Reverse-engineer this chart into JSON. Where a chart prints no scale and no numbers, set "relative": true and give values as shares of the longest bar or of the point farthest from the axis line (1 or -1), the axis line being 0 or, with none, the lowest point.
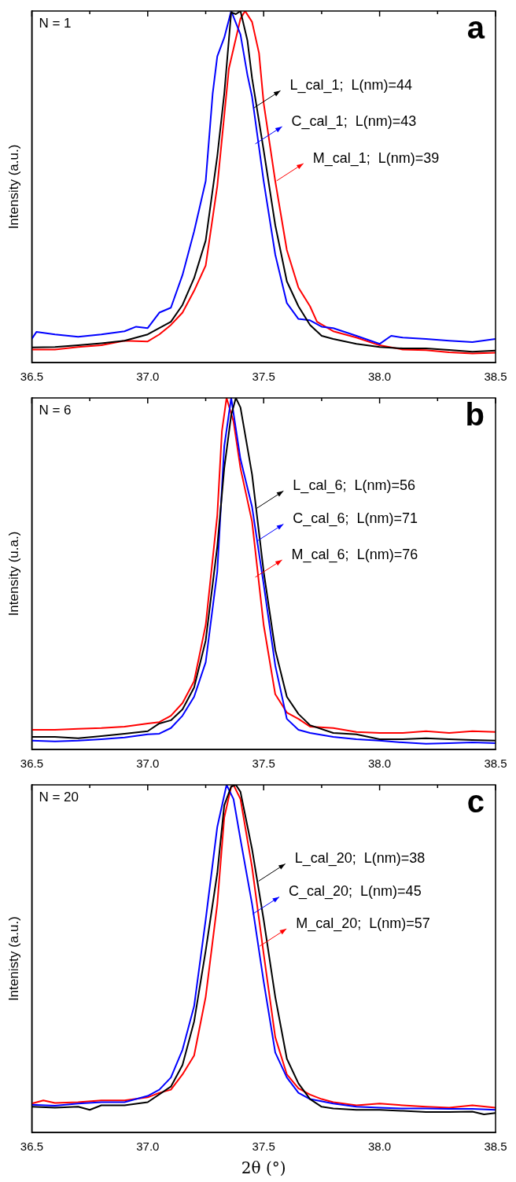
{
  "chart_data": [
    {
      "type": "line",
      "relative": true,
      "ylabel": "Intensity (a.u.)",
      "xlim": [
        36.5,
        38.5
      ],
      "xticks": [
        36.5,
        {
          "value": 36.75,
          "label": null
        },
        {
          "value": 37,
          "label": "37.0"
        },
        {
          "value": 37.25,
          "label": null
        },
        37.5,
        {
          "value": 37.75,
          "label": null
        },
        {
          "value": 38,
          "label": "38.0"
        },
        {
          "value": 38.25,
          "label": null
        },
        38.5
      ],
      "tick_labels": "x",
      "grid": false,
      "legend": false,
      "marker": "none",
      "line_style": "solid",
      "annotations": [
        "N = 1",
        "a",
        {
          "text": "L_cal_1;  L(nm)=44",
          "x": 37.457,
          "y": 0.724
        },
        {
          "text": "C_cal_1;  L(nm)=43",
          "x": 37.464,
          "y": 0.622
        },
        {
          "text": "M_cal_1;  L(nm)=39",
          "x": 37.556,
          "y": 0.517
        }
      ],
      "series": [
        {
          "color": "#000000",
          "x": [
            36.5,
            36.6,
            36.7,
            36.8,
            36.9,
            37.0,
            37.05,
            37.1,
            37.15,
            37.2,
            37.25,
            37.3,
            37.33,
            37.36,
            37.38,
            37.4,
            37.43,
            37.45,
            37.5,
            37.55,
            37.6,
            37.65,
            37.7,
            37.75,
            37.8,
            37.9,
            38.0,
            38.1,
            38.2,
            38.3,
            38.4,
            38.5
          ],
          "values": [
            0.043,
            0.044,
            0.049,
            0.055,
            0.062,
            0.08,
            0.098,
            0.116,
            0.164,
            0.24,
            0.347,
            0.587,
            0.764,
            0.996,
            0.991,
            1,
            0.916,
            0.809,
            0.604,
            0.391,
            0.231,
            0.16,
            0.107,
            0.076,
            0.067,
            0.053,
            0.044,
            0.04,
            0.04,
            0.036,
            0.031,
            0.034
          ]
        },
        {
          "color": "#0000ff",
          "x": [
            36.5,
            36.52,
            36.6,
            36.7,
            36.8,
            36.9,
            36.95,
            37.0,
            37.05,
            37.1,
            37.15,
            37.2,
            37.25,
            37.28,
            37.3,
            37.33,
            37.36,
            37.4,
            37.43,
            37.45,
            37.5,
            37.55,
            37.6,
            37.65,
            37.7,
            37.75,
            37.8,
            37.9,
            38.0,
            38.05,
            38.1,
            38.2,
            38.3,
            38.4,
            38.5
          ],
          "values": [
            0.067,
            0.087,
            0.08,
            0.073,
            0.08,
            0.089,
            0.102,
            0.098,
            0.142,
            0.156,
            0.249,
            0.373,
            0.516,
            0.764,
            0.871,
            0.924,
            1,
            0.933,
            0.818,
            0.756,
            0.516,
            0.307,
            0.169,
            0.124,
            0.12,
            0.102,
            0.098,
            0.076,
            0.053,
            0.076,
            0.071,
            0.067,
            0.062,
            0.058,
            0.067
          ]
        },
        {
          "color": "#ff0000",
          "x": [
            36.5,
            36.6,
            36.7,
            36.8,
            36.9,
            37.0,
            37.05,
            37.1,
            37.15,
            37.2,
            37.25,
            37.3,
            37.35,
            37.4,
            37.42,
            37.45,
            37.48,
            37.5,
            37.55,
            37.6,
            37.65,
            37.7,
            37.73,
            37.8,
            37.9,
            38.0,
            38.1,
            38.2,
            38.3,
            38.4,
            38.5
          ],
          "values": [
            0.037,
            0.037,
            0.044,
            0.049,
            0.062,
            0.06,
            0.08,
            0.107,
            0.142,
            0.204,
            0.276,
            0.502,
            0.836,
            0.978,
            1,
            0.969,
            0.88,
            0.738,
            0.516,
            0.32,
            0.213,
            0.16,
            0.116,
            0.089,
            0.071,
            0.049,
            0.037,
            0.035,
            0.029,
            0.026,
            0.028
          ]
        }
      ]
    },
    {
      "type": "line",
      "relative": true,
      "ylabel": "Intensity (u.a.)",
      "xlim": [
        36.5,
        38.5
      ],
      "xticks": [
        36.5,
        {
          "value": 36.75,
          "label": null
        },
        {
          "value": 37,
          "label": "37.0"
        },
        {
          "value": 37.25,
          "label": null
        },
        37.5,
        {
          "value": 37.75,
          "label": null
        },
        {
          "value": 38,
          "label": "38.0"
        },
        {
          "value": 38.25,
          "label": null
        },
        38.5
      ],
      "tick_labels": "x",
      "grid": false,
      "legend": false,
      "marker": "none",
      "line_style": "solid",
      "annotations": [
        "N = 6",
        "b",
        {
          "text": "L_cal_6;  L(nm)=56",
          "x": 37.47,
          "y": 0.686
        },
        {
          "text": "C_cal_6;  L(nm)=71",
          "x": 37.47,
          "y": 0.592
        },
        {
          "text": "M_cal_6;  L(nm)=76",
          "x": 37.464,
          "y": 0.49
        }
      ],
      "series": [
        {
          "color": "#000000",
          "x": [
            36.5,
            36.6,
            36.7,
            36.8,
            36.9,
            37.0,
            37.05,
            37.1,
            37.15,
            37.2,
            37.25,
            37.3,
            37.33,
            37.36,
            37.38,
            37.4,
            37.45,
            37.5,
            37.55,
            37.6,
            37.65,
            37.7,
            37.8,
            37.9,
            38.0,
            38.1,
            38.2,
            38.3,
            38.4,
            38.5
          ],
          "values": [
            0.036,
            0.036,
            0.032,
            0.038,
            0.045,
            0.052,
            0.074,
            0.083,
            0.114,
            0.176,
            0.31,
            0.577,
            0.8,
            0.951,
            1,
            0.973,
            0.782,
            0.506,
            0.283,
            0.15,
            0.101,
            0.069,
            0.047,
            0.043,
            0.029,
            0.029,
            0.032,
            0.029,
            0.027,
            0.025
          ]
        },
        {
          "color": "#0000ff",
          "x": [
            36.5,
            36.6,
            36.7,
            36.8,
            36.9,
            37.0,
            37.05,
            37.1,
            37.15,
            37.2,
            37.25,
            37.3,
            37.33,
            37.36,
            37.4,
            37.45,
            37.5,
            37.55,
            37.6,
            37.65,
            37.7,
            37.8,
            37.9,
            38.0,
            38.1,
            38.2,
            38.3,
            38.4,
            38.5
          ],
          "values": [
            0.025,
            0.023,
            0.025,
            0.029,
            0.034,
            0.043,
            0.045,
            0.061,
            0.096,
            0.15,
            0.248,
            0.506,
            0.862,
            1,
            0.826,
            0.69,
            0.47,
            0.239,
            0.087,
            0.056,
            0.047,
            0.036,
            0.029,
            0.025,
            0.02,
            0.016,
            0.018,
            0.02,
            0.018
          ]
        },
        {
          "color": "#ff0000",
          "x": [
            36.5,
            36.6,
            36.7,
            36.8,
            36.9,
            37.0,
            37.05,
            37.1,
            37.15,
            37.2,
            37.25,
            37.3,
            37.32,
            37.34,
            37.37,
            37.4,
            37.45,
            37.5,
            37.55,
            37.6,
            37.65,
            37.7,
            37.8,
            37.9,
            38.0,
            38.1,
            38.2,
            38.3,
            38.4,
            38.5
          ],
          "values": [
            0.056,
            0.056,
            0.059,
            0.061,
            0.065,
            0.074,
            0.078,
            0.096,
            0.132,
            0.194,
            0.354,
            0.666,
            0.906,
            1,
            0.933,
            0.8,
            0.648,
            0.354,
            0.157,
            0.105,
            0.087,
            0.065,
            0.061,
            0.05,
            0.047,
            0.047,
            0.052,
            0.047,
            0.052,
            0.05
          ]
        }
      ]
    },
    {
      "type": "line",
      "relative": true,
      "xlabel": "2θ (°)",
      "ylabel": "Intenisty (a.u.)",
      "xlim": [
        36.5,
        38.5
      ],
      "xticks": [
        36.5,
        {
          "value": 36.75,
          "label": null
        },
        {
          "value": 37,
          "label": "37.0"
        },
        {
          "value": 37.25,
          "label": null
        },
        37.5,
        {
          "value": 37.75,
          "label": null
        },
        {
          "value": 38,
          "label": "38.0"
        },
        {
          "value": 38.25,
          "label": null
        },
        38.5
      ],
      "tick_labels": "x",
      "grid": false,
      "legend": false,
      "marker": "none",
      "line_style": "solid",
      "annotations": [
        "N = 20",
        "c",
        {
          "text": "L_cal_20;  L(nm)=38",
          "x": 37.478,
          "y": 0.723
        },
        {
          "text": "C_cal_20;  L(nm)=45",
          "x": 37.452,
          "y": 0.628
        },
        {
          "text": "M_cal_20;  L(nm)=57",
          "x": 37.483,
          "y": 0.536
        }
      ],
      "series": [
        {
          "color": "#000000",
          "x": [
            36.5,
            36.6,
            36.7,
            36.75,
            36.8,
            36.9,
            37.0,
            37.1,
            37.15,
            37.2,
            37.25,
            37.3,
            37.33,
            37.36,
            37.38,
            37.4,
            37.45,
            37.5,
            37.55,
            37.6,
            37.65,
            37.7,
            37.75,
            37.8,
            37.9,
            38.0,
            38.1,
            38.2,
            38.3,
            38.4,
            38.45,
            38.5
          ],
          "values": [
            0.074,
            0.071,
            0.074,
            0.065,
            0.078,
            0.078,
            0.087,
            0.132,
            0.194,
            0.319,
            0.523,
            0.746,
            0.941,
            0.995,
            1,
            0.98,
            0.815,
            0.612,
            0.39,
            0.212,
            0.141,
            0.096,
            0.074,
            0.069,
            0.065,
            0.065,
            0.062,
            0.059,
            0.059,
            0.06,
            0.052,
            0.056
          ]
        },
        {
          "color": "#0000ff",
          "x": [
            36.5,
            36.6,
            36.7,
            36.8,
            36.9,
            37.0,
            37.05,
            37.1,
            37.15,
            37.2,
            37.25,
            37.3,
            37.34,
            37.37,
            37.4,
            37.45,
            37.5,
            37.55,
            37.6,
            37.65,
            37.7,
            37.8,
            37.9,
            38.0,
            38.1,
            38.2,
            38.3,
            38.4,
            38.5
          ],
          "values": [
            0.08,
            0.077,
            0.083,
            0.087,
            0.087,
            0.105,
            0.123,
            0.158,
            0.238,
            0.363,
            0.612,
            0.879,
            1,
            0.959,
            0.843,
            0.657,
            0.434,
            0.23,
            0.158,
            0.114,
            0.096,
            0.083,
            0.074,
            0.071,
            0.069,
            0.069,
            0.068,
            0.068,
            0.065
          ]
        },
        {
          "color": "#ff0000",
          "x": [
            36.5,
            36.55,
            36.6,
            36.7,
            36.8,
            36.9,
            37.0,
            37.05,
            37.1,
            37.15,
            37.2,
            37.25,
            37.3,
            37.33,
            37.36,
            37.37,
            37.4,
            37.45,
            37.5,
            37.55,
            37.6,
            37.65,
            37.7,
            37.75,
            37.8,
            37.9,
            38.0,
            38.1,
            38.2,
            38.3,
            38.4,
            38.5
          ],
          "values": [
            0.083,
            0.092,
            0.085,
            0.087,
            0.092,
            0.092,
            0.101,
            0.114,
            0.123,
            0.167,
            0.221,
            0.39,
            0.657,
            0.906,
            0.995,
            1,
            0.959,
            0.763,
            0.514,
            0.274,
            0.167,
            0.127,
            0.109,
            0.096,
            0.087,
            0.078,
            0.083,
            0.078,
            0.074,
            0.071,
            0.078,
            0.071
          ]
        }
      ]
    }
  ]
}
